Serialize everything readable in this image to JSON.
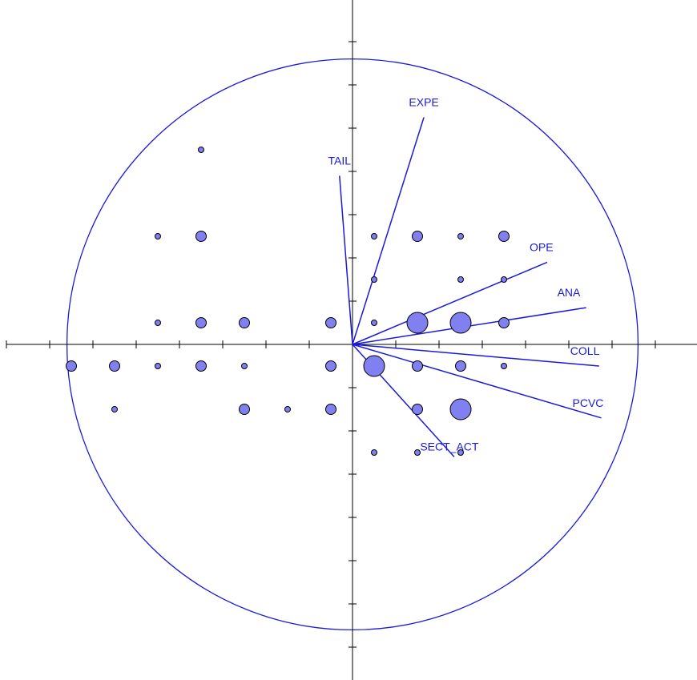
{
  "chart_data": {
    "type": "scatter",
    "title": "",
    "xlabel": "",
    "ylabel": "",
    "xlim": [
      -8,
      8
    ],
    "ylim": [
      -8,
      8
    ],
    "grid": false,
    "correlation_circle_radius": 6.6,
    "variables": [
      {
        "label": "EXPE",
        "x": 1.65,
        "y": 5.25
      },
      {
        "label": "TAIL",
        "x": -0.3,
        "y": 3.9
      },
      {
        "label": "OPE",
        "x": 4.5,
        "y": 1.9
      },
      {
        "label": "ANA",
        "x": 5.4,
        "y": 0.85
      },
      {
        "label": "COLL",
        "x": 5.7,
        "y": -0.5
      },
      {
        "label": "PCVC",
        "x": 5.75,
        "y": -1.7
      },
      {
        "label": "SECT_ACT",
        "x": 2.35,
        "y": -2.6
      }
    ],
    "points": [
      {
        "x": -3.5,
        "y": 4.5,
        "size": 1
      },
      {
        "x": -4.5,
        "y": 2.5,
        "size": 1
      },
      {
        "x": -3.5,
        "y": 2.5,
        "size": 2
      },
      {
        "x": 0.5,
        "y": 2.5,
        "size": 1
      },
      {
        "x": 1.5,
        "y": 2.5,
        "size": 2
      },
      {
        "x": 2.5,
        "y": 2.5,
        "size": 1
      },
      {
        "x": 3.5,
        "y": 2.5,
        "size": 2
      },
      {
        "x": 0.5,
        "y": 1.5,
        "size": 1
      },
      {
        "x": 2.5,
        "y": 1.5,
        "size": 1
      },
      {
        "x": 3.5,
        "y": 1.5,
        "size": 1
      },
      {
        "x": -4.5,
        "y": 0.5,
        "size": 1
      },
      {
        "x": -3.5,
        "y": 0.5,
        "size": 2
      },
      {
        "x": -2.5,
        "y": 0.5,
        "size": 2
      },
      {
        "x": -0.5,
        "y": 0.5,
        "size": 2
      },
      {
        "x": 0.5,
        "y": 0.5,
        "size": 1
      },
      {
        "x": 1.5,
        "y": 0.5,
        "size": 4
      },
      {
        "x": 2.5,
        "y": 0.5,
        "size": 4
      },
      {
        "x": 3.5,
        "y": 0.5,
        "size": 2
      },
      {
        "x": -6.5,
        "y": -0.5,
        "size": 2
      },
      {
        "x": -5.5,
        "y": -0.5,
        "size": 2
      },
      {
        "x": -4.5,
        "y": -0.5,
        "size": 1
      },
      {
        "x": -3.5,
        "y": -0.5,
        "size": 2
      },
      {
        "x": -2.5,
        "y": -0.5,
        "size": 1
      },
      {
        "x": -0.5,
        "y": -0.5,
        "size": 2
      },
      {
        "x": 0.5,
        "y": -0.5,
        "size": 4
      },
      {
        "x": 1.5,
        "y": -0.5,
        "size": 2
      },
      {
        "x": 2.5,
        "y": -0.5,
        "size": 2
      },
      {
        "x": 3.5,
        "y": -0.5,
        "size": 1
      },
      {
        "x": -5.5,
        "y": -1.5,
        "size": 1
      },
      {
        "x": -2.5,
        "y": -1.5,
        "size": 2
      },
      {
        "x": -1.5,
        "y": -1.5,
        "size": 1
      },
      {
        "x": -0.5,
        "y": -1.5,
        "size": 2
      },
      {
        "x": 1.5,
        "y": -1.5,
        "size": 2
      },
      {
        "x": 2.5,
        "y": -1.5,
        "size": 4
      },
      {
        "x": 0.5,
        "y": -2.5,
        "size": 1
      },
      {
        "x": 1.5,
        "y": -2.5,
        "size": 1
      },
      {
        "x": 2.5,
        "y": -2.5,
        "size": 1
      }
    ]
  }
}
